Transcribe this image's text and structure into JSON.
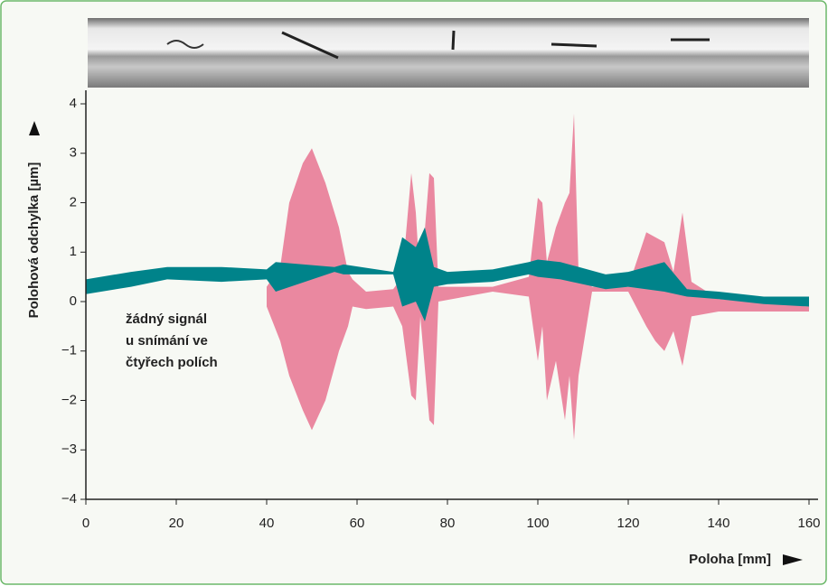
{
  "chart_data": {
    "type": "band",
    "y_label": "Polohová odchylka [µm]",
    "x_label": "Poloha [mm]",
    "annotation": [
      "žádný signál",
      "u snímání ve",
      "čtyřech polích"
    ],
    "xlim": [
      0,
      162
    ],
    "ylim": [
      -4,
      4
    ],
    "xticks": [
      0,
      20,
      40,
      60,
      80,
      100,
      120,
      140,
      160
    ],
    "yticks": [
      {
        "value": -4,
        "label": "−4"
      },
      {
        "value": -3,
        "label": "−3"
      },
      {
        "value": -2,
        "label": "−2"
      },
      {
        "value": -1,
        "label": "−1"
      },
      0,
      1,
      2,
      3,
      4
    ],
    "series": [
      {
        "color": "#ea88a0",
        "x": [
          40,
          43,
          45,
          48,
          50,
          53,
          56,
          58,
          59,
          62,
          68,
          70,
          72,
          73,
          74,
          76,
          77,
          78,
          90,
          98,
          100,
          101,
          102,
          104,
          106,
          107,
          108,
          109,
          112,
          120,
          124,
          126,
          128,
          130,
          132,
          134,
          140,
          160
        ],
        "low": [
          -0.1,
          -0.8,
          -1.5,
          -2.2,
          -2.6,
          -2,
          -1,
          -0.5,
          -0.1,
          -0.15,
          -0.1,
          -0.5,
          -1.9,
          -2,
          -0.3,
          -2.4,
          -2.5,
          0,
          0.2,
          0.1,
          -1.2,
          -0.5,
          -2,
          -1.2,
          -2.4,
          -1.5,
          -2.8,
          -1.5,
          0.2,
          0.2,
          -0.5,
          -0.8,
          -1,
          -0.6,
          -1.3,
          -0.3,
          -0.2,
          -0.2
        ],
        "high": [
          0.3,
          0.7,
          2.0,
          2.8,
          3.1,
          2.4,
          1.5,
          0.6,
          0.45,
          0.2,
          0.25,
          0.5,
          2.6,
          1.8,
          0.3,
          2.6,
          2.5,
          0.3,
          0.3,
          0.5,
          2.1,
          2.0,
          0.8,
          1.5,
          2,
          2.2,
          3.8,
          0.6,
          0.3,
          0.3,
          1.4,
          1.3,
          1.2,
          0.6,
          1.8,
          0.4,
          0.05,
          -0.1
        ]
      },
      {
        "color": "#00838a",
        "x": [
          0,
          10,
          18,
          30,
          40,
          42,
          55,
          57,
          68,
          70,
          73,
          75,
          77,
          80,
          90,
          98,
          100,
          105,
          115,
          120,
          128,
          133,
          140,
          150,
          160
        ],
        "low": [
          0.15,
          0.3,
          0.45,
          0.4,
          0.45,
          0.2,
          0.6,
          0.55,
          0.55,
          -0.1,
          0,
          -0.4,
          0.3,
          0.35,
          0.4,
          0.55,
          0.5,
          0.45,
          0.25,
          0.3,
          0.2,
          0.1,
          0.05,
          -0.05,
          -0.1
        ],
        "high": [
          0.45,
          0.6,
          0.7,
          0.7,
          0.65,
          0.8,
          0.7,
          0.75,
          0.6,
          1.3,
          1.1,
          1.5,
          0.7,
          0.6,
          0.65,
          0.8,
          0.85,
          0.8,
          0.55,
          0.6,
          0.8,
          0.25,
          0.2,
          0.1,
          0.1
        ]
      }
    ]
  }
}
